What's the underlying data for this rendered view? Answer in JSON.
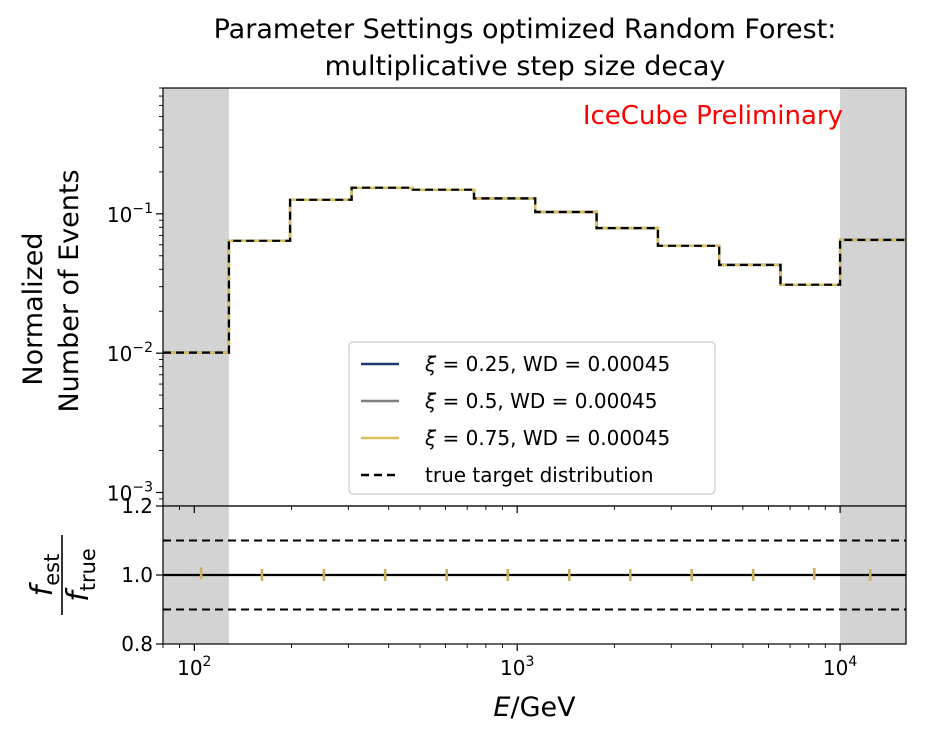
{
  "chart_data": {
    "type": "line",
    "title_line1": "Parameter Settings optimized Random Forest:",
    "title_line2": "multiplicative step size decay",
    "watermark": "IceCube Preliminary",
    "watermark_color": "#ff0000",
    "xlabel_italic": "E",
    "xlabel_rest": "/GeV",
    "xscale": "log",
    "xlim": [
      80,
      16000
    ],
    "x_ticks": [
      {
        "value": 100,
        "base": "10",
        "exp": "2"
      },
      {
        "value": 1000,
        "base": "10",
        "exp": "3"
      },
      {
        "value": 10000,
        "base": "10",
        "exp": "4"
      }
    ],
    "top_panel": {
      "ylabel_line1": "Normalized",
      "ylabel_line2": "Number of Events",
      "yscale": "log",
      "ylim": [
        0.0008,
        0.8
      ],
      "y_ticks": [
        {
          "value": 0.001,
          "base": "10",
          "exp": "−3"
        },
        {
          "value": 0.01,
          "base": "10",
          "exp": "−2"
        },
        {
          "value": 0.1,
          "base": "10",
          "exp": "−1"
        }
      ]
    },
    "bottom_panel": {
      "ylabel_num_main": "f",
      "ylabel_num_sub": "est",
      "ylabel_den_main": "f",
      "ylabel_den_sub": "true",
      "ylim": [
        0.8,
        1.2
      ],
      "y_ticks": [
        {
          "value": 0.8,
          "label": "0.8"
        },
        {
          "value": 1.0,
          "label": "1.0"
        },
        {
          "value": 1.2,
          "label": "1.2"
        }
      ],
      "reference_lines": [
        0.9,
        1.0,
        1.1
      ],
      "ratio_points": [
        {
          "x": 105,
          "y": 1.005
        },
        {
          "x": 162,
          "y": 1.0
        },
        {
          "x": 252,
          "y": 1.0
        },
        {
          "x": 390,
          "y": 1.0
        },
        {
          "x": 605,
          "y": 1.0
        },
        {
          "x": 935,
          "y": 1.0
        },
        {
          "x": 1450,
          "y": 1.0
        },
        {
          "x": 2240,
          "y": 1.0
        },
        {
          "x": 3470,
          "y": 1.0
        },
        {
          "x": 5380,
          "y": 1.0
        },
        {
          "x": 8320,
          "y": 1.003
        },
        {
          "x": 12400,
          "y": 1.0
        }
      ]
    },
    "shaded_regions": [
      [
        80,
        128
      ],
      [
        10000,
        16000
      ]
    ],
    "shade_color": "#d3d3d3",
    "bin_edges": [
      80,
      128,
      198,
      307,
      475,
      735,
      1138,
      1762,
      2728,
      4223,
      6538,
      10000,
      16000
    ],
    "bin_values": [
      0.0101,
      0.064,
      0.126,
      0.154,
      0.149,
      0.129,
      0.103,
      0.079,
      0.059,
      0.043,
      0.031,
      0.065
    ],
    "series": [
      {
        "name": "ξ = 0.25, WD = 0.00045",
        "legend_greek": "ξ",
        "legend_rest": " = 0.25, WD = 0.00045",
        "color": "#1f3a6e",
        "style": "solid"
      },
      {
        "name": "ξ = 0.5, WD = 0.00045",
        "legend_greek": "ξ",
        "legend_rest": " = 0.5, WD = 0.00045",
        "color": "#7f7f7f",
        "style": "solid"
      },
      {
        "name": "ξ = 0.75, WD = 0.00045",
        "legend_greek": "ξ",
        "legend_rest": " = 0.75, WD = 0.00045",
        "color": "#dcc060",
        "style": "solid"
      },
      {
        "name": "true target distribution",
        "legend_greek": "",
        "legend_rest": "true target distribution",
        "color": "#000000",
        "style": "dashed"
      }
    ],
    "ratio_marker_color": "#c8b060",
    "legend_placement": "center",
    "grid": false
  }
}
